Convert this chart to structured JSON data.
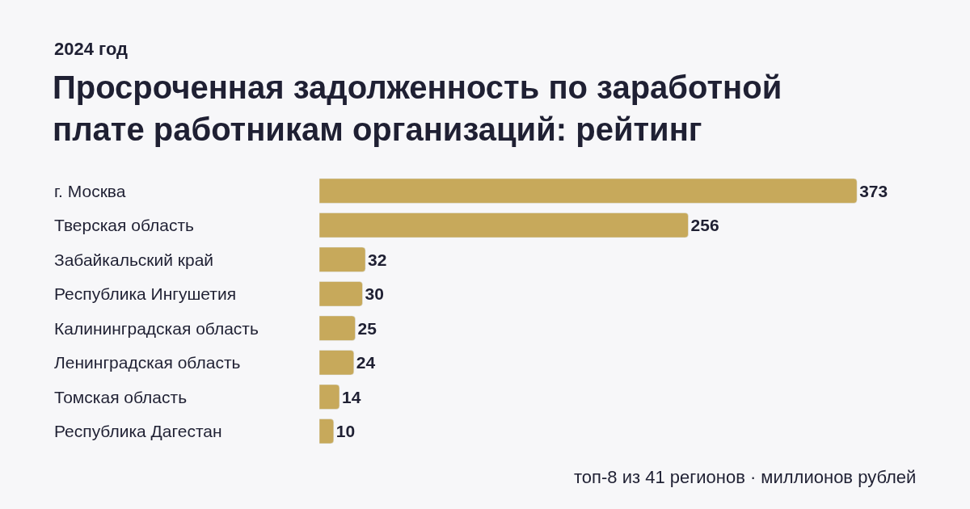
{
  "chart_data": {
    "type": "bar",
    "orientation": "horizontal",
    "title": "Просроченная задолженность по заработной плате работникам организаций: рейтинг",
    "subtitle": "2024 год",
    "categories": [
      "г. Москва",
      "Тверская область",
      "Забайкальский край",
      "Республика Ингушетия",
      "Калининградская область",
      "Ленинградская область",
      "Томская область",
      "Республика Дагестан"
    ],
    "values": [
      373,
      256,
      32,
      30,
      25,
      24,
      14,
      10
    ],
    "color": "#c7a95b",
    "data_labels": true,
    "tick_labels": "y",
    "annotations": [
      "топ-8 из 41 регионов · миллионов рублей"
    ]
  }
}
